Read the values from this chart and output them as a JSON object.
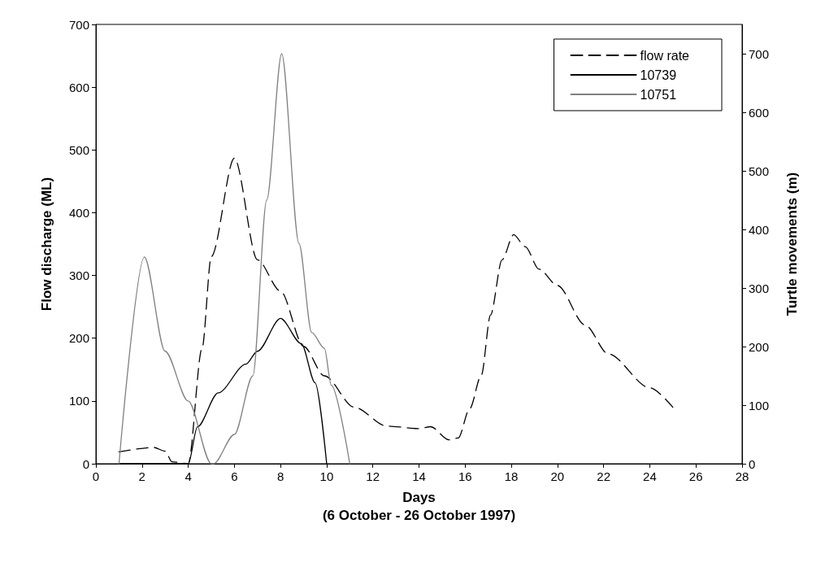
{
  "chart_data": {
    "type": "line",
    "xlabel": "Days\n(6 October - 26 October 1997)",
    "ylabel": "Flow discharge (ML)",
    "y2label": "Turtle movements (m)",
    "xlim": [
      0,
      28
    ],
    "xticks": [
      0,
      2,
      4,
      6,
      8,
      10,
      12,
      14,
      16,
      18,
      20,
      22,
      24,
      26,
      28
    ],
    "ylim": [
      0,
      700
    ],
    "yticks": [
      0,
      100,
      200,
      300,
      400,
      500,
      600,
      700
    ],
    "y2lim": [
      0,
      750
    ],
    "y2ticks": [
      0,
      100,
      200,
      300,
      400,
      500,
      600,
      700
    ],
    "grid": false,
    "legend": "top right",
    "marker": "none",
    "series": [
      {
        "name": "flow rate",
        "color": "#000000",
        "line_style": "dashed",
        "x": [
          1,
          2.5,
          3,
          3.3,
          4,
          4.6,
          5,
          6,
          7,
          8,
          9,
          9.9,
          11.2,
          12.6,
          14,
          14.5,
          15.3,
          15.7,
          16.2,
          16.7,
          17.1,
          17.6,
          18.1,
          18.6,
          19.2,
          20,
          21.2,
          22.2,
          24,
          25
        ],
        "values": [
          19,
          26,
          20,
          3,
          0,
          184,
          330,
          487,
          325,
          275,
          187,
          140,
          90,
          60,
          56,
          59,
          38,
          41,
          88,
          141,
          237,
          325,
          365,
          346,
          310,
          284,
          221,
          175,
          121,
          90
        ]
      },
      {
        "name": "10739",
        "color": "#000000",
        "line_style": "solid",
        "axis": "y2",
        "x": [
          1,
          2,
          3,
          4,
          4.4,
          5.3,
          6.5,
          7,
          8,
          8.9,
          9.5,
          10
        ],
        "values": [
          0,
          0,
          0,
          0,
          63,
          121,
          170,
          192,
          248,
          205,
          138,
          0
        ]
      },
      {
        "name": "10751",
        "color": "#808080",
        "line_style": "solid",
        "axis": "y2",
        "x": [
          1,
          2.1,
          3,
          4,
          5,
          5.1,
          6,
          6.8,
          7.4,
          8.05,
          8.8,
          9.35,
          9.9,
          10.2,
          11
        ],
        "values": [
          0,
          353,
          192,
          107,
          0,
          0,
          50,
          150,
          450,
          700,
          376,
          224,
          197,
          134,
          0
        ]
      }
    ]
  }
}
